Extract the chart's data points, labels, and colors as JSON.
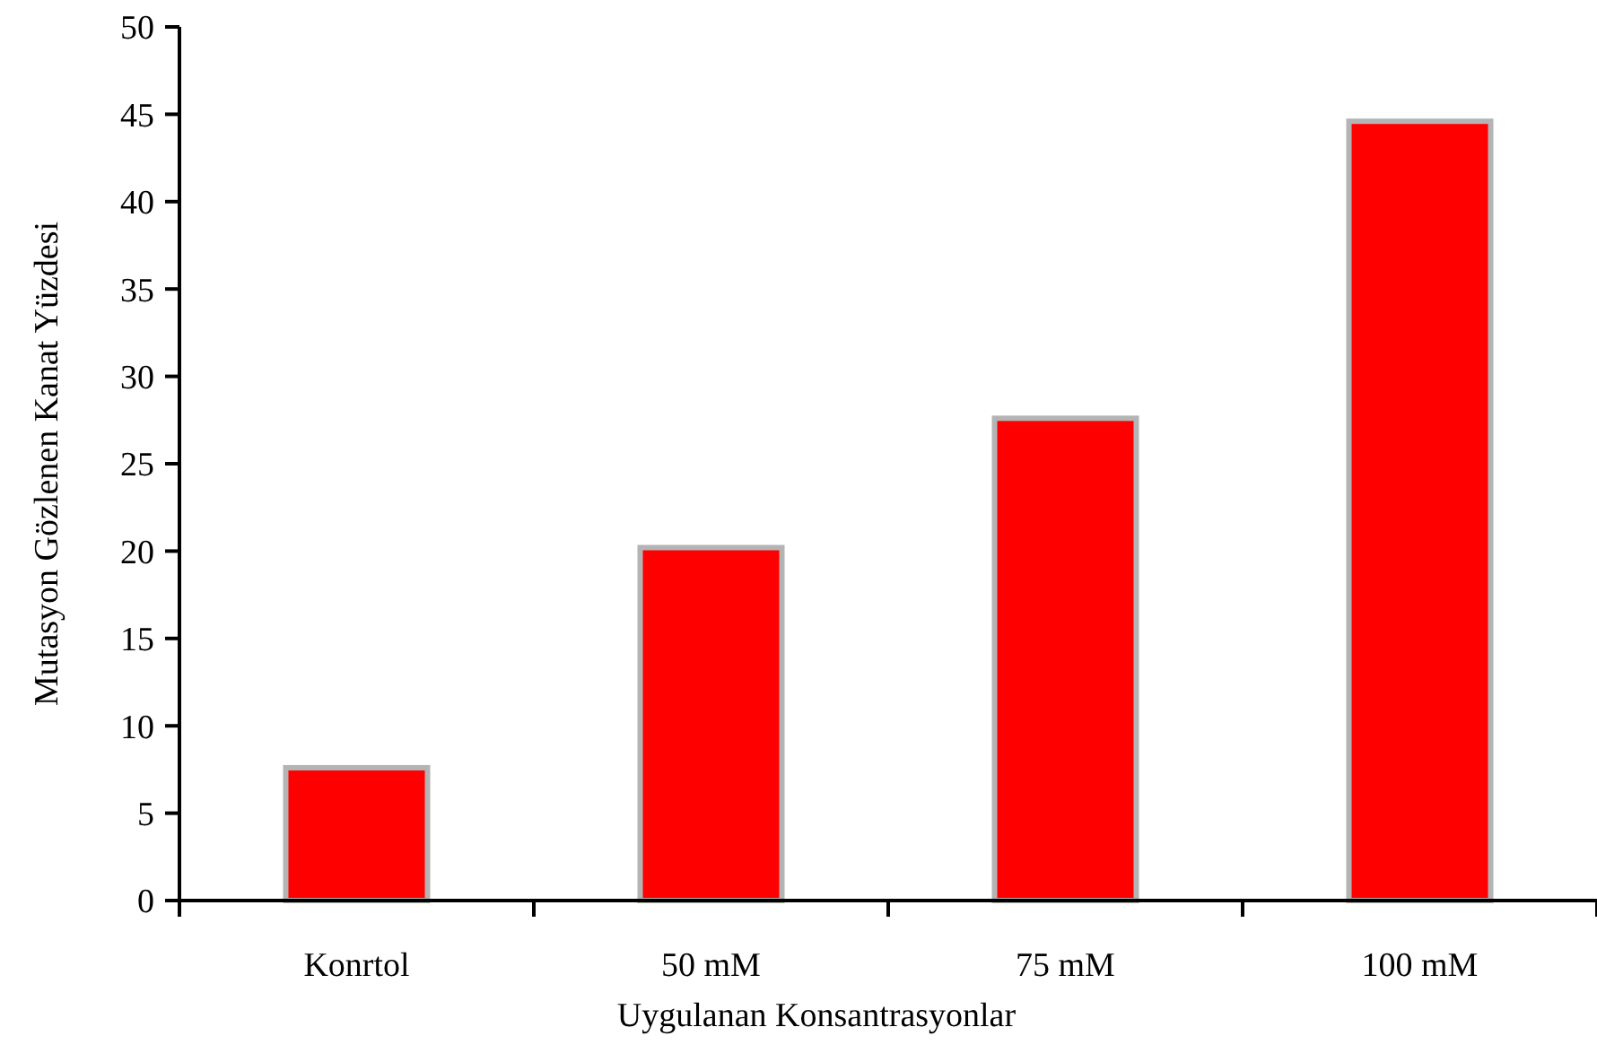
{
  "chart_data": {
    "type": "bar",
    "xlabel": "Uygulanan Konsantrasyonlar",
    "ylabel": "Mutasyon Gözlenen Kanat Yüzdesi",
    "categories": [
      "Konrtol",
      "50 mM",
      "75 mM",
      "100 mM"
    ],
    "values": [
      7.6,
      20.2,
      27.6,
      44.6
    ],
    "color": "#ff0000",
    "ylim": [
      0,
      50
    ],
    "yticks": [
      0,
      5,
      10,
      15,
      20,
      25,
      30,
      35,
      40,
      45,
      50
    ]
  }
}
